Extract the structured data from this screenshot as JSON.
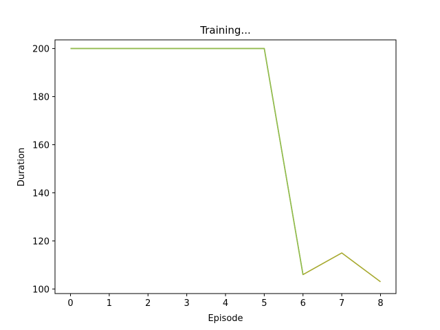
{
  "chart_data": {
    "type": "line",
    "title": "Training...",
    "xlabel": "Episode",
    "ylabel": "Duration",
    "xlim": [
      -0.4,
      8.4
    ],
    "ylim": [
      98.1,
      203.6
    ],
    "x_ticks": [
      0,
      1,
      2,
      3,
      4,
      5,
      6,
      7,
      8
    ],
    "y_ticks": [
      100,
      120,
      140,
      160,
      180,
      200
    ],
    "grid": false,
    "series": [
      {
        "x": [
          0,
          1,
          2,
          3,
          4,
          5,
          6,
          7,
          8
        ],
        "values": [
          200,
          200,
          200,
          200,
          200,
          200,
          106,
          115,
          103
        ],
        "color": "#a6a82c"
      },
      {
        "x": [
          0,
          1,
          2,
          3,
          4,
          5,
          6
        ],
        "values": [
          200,
          200,
          200,
          200,
          200,
          200,
          106
        ],
        "color": "#8fbc4f"
      }
    ]
  }
}
